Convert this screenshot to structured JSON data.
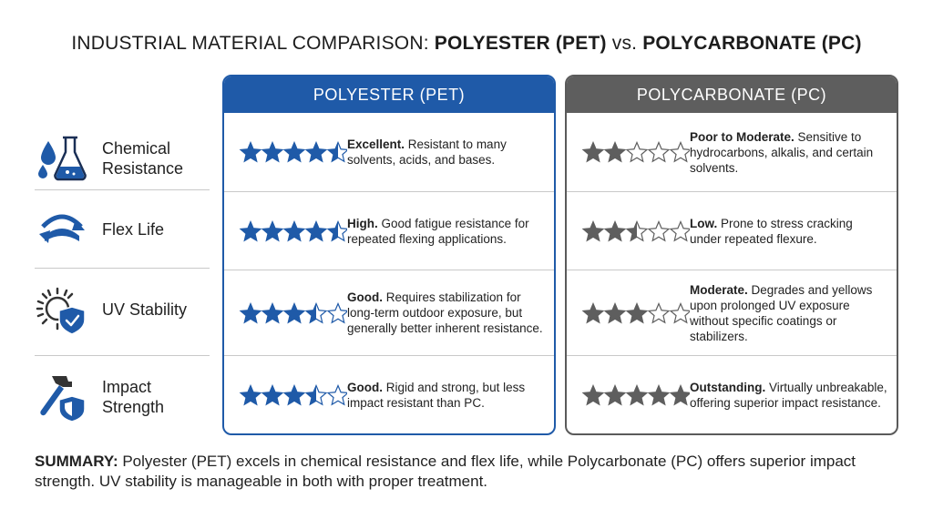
{
  "title": {
    "prefix": "INDUSTRIAL MATERIAL COMPARISON: ",
    "mat_a": "POLYESTER (PET)",
    "vs": " vs. ",
    "mat_b": "POLYCARBONATE (PC)"
  },
  "criteria": [
    {
      "label_line1": "Chemical",
      "label_line2": "Resistance",
      "icon": "flask-droplet-icon"
    },
    {
      "label_line1": "Flex Life",
      "label_line2": "",
      "icon": "flex-arrows-icon"
    },
    {
      "label_line1": "UV Stability",
      "label_line2": "",
      "icon": "sun-shield-icon"
    },
    {
      "label_line1": "Impact",
      "label_line2": "Strength",
      "icon": "hammer-shield-icon"
    }
  ],
  "panels": [
    {
      "header": "POLYESTER (PET)",
      "color": "#1f5aa8",
      "rows": [
        {
          "rating": 4.5,
          "lead": "Excellent.",
          "text": " Resistant to many solvents, acids, and bases."
        },
        {
          "rating": 4.5,
          "lead": "High.",
          "text": " Good fatigue resistance for repeated flexing applications."
        },
        {
          "rating": 3.5,
          "lead": "Good.",
          "text": " Requires stabilization for long-term outdoor exposure, but generally better inherent resistance."
        },
        {
          "rating": 3.5,
          "lead": "Good.",
          "text": " Rigid and strong, but less impact resistant than PC."
        }
      ]
    },
    {
      "header": "POLYCARBONATE (PC)",
      "color": "#5e5e5e",
      "rows": [
        {
          "rating": 2,
          "lead": "Poor to Moderate.",
          "text": " Sensitive to hydrocarbons, alkalis, and certain solvents."
        },
        {
          "rating": 2.5,
          "lead": "Low.",
          "text": " Prone to stress cracking under repeated flexure."
        },
        {
          "rating": 3,
          "lead": "Moderate.",
          "text": " Degrades and yellows upon prolonged UV exposure without specific coatings or stabilizers."
        },
        {
          "rating": 5,
          "lead": "Outstanding.",
          "text": " Virtually unbreakable, offering superior impact resistance."
        }
      ]
    }
  ],
  "summary": {
    "lead": "SUMMARY:",
    "text": " Polyester (PET) excels in chemical resistance and flex life, while Polycarbonate (PC) offers superior impact strength. UV stability is manageable in both with proper treatment."
  }
}
